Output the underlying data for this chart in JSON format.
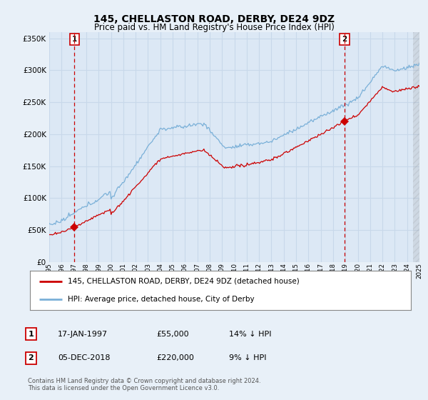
{
  "title": "145, CHELLASTON ROAD, DERBY, DE24 9DZ",
  "subtitle": "Price paid vs. HM Land Registry's House Price Index (HPI)",
  "background_color": "#e8f0f8",
  "plot_bg_color": "#dce8f5",
  "grid_color": "#c8d8ea",
  "hpi_color": "#7ab0d8",
  "price_color": "#cc0000",
  "dashed_color": "#cc0000",
  "ylim": [
    0,
    360000
  ],
  "yticks": [
    0,
    50000,
    100000,
    150000,
    200000,
    250000,
    300000,
    350000
  ],
  "ytick_labels": [
    "£0",
    "£50K",
    "£100K",
    "£150K",
    "£200K",
    "£250K",
    "£300K",
    "£350K"
  ],
  "xstart": 1995,
  "xend": 2025,
  "sale1_date": 1997.04,
  "sale1_price": 55000,
  "sale1_label": "1",
  "sale2_date": 2018.92,
  "sale2_price": 220000,
  "sale2_label": "2",
  "legend_entries": [
    "145, CHELLASTON ROAD, DERBY, DE24 9DZ (detached house)",
    "HPI: Average price, detached house, City of Derby"
  ],
  "table_rows": [
    [
      "1",
      "17-JAN-1997",
      "£55,000",
      "14% ↓ HPI"
    ],
    [
      "2",
      "05-DEC-2018",
      "£220,000",
      "9% ↓ HPI"
    ]
  ],
  "footer": "Contains HM Land Registry data © Crown copyright and database right 2024.\nThis data is licensed under the Open Government Licence v3.0."
}
